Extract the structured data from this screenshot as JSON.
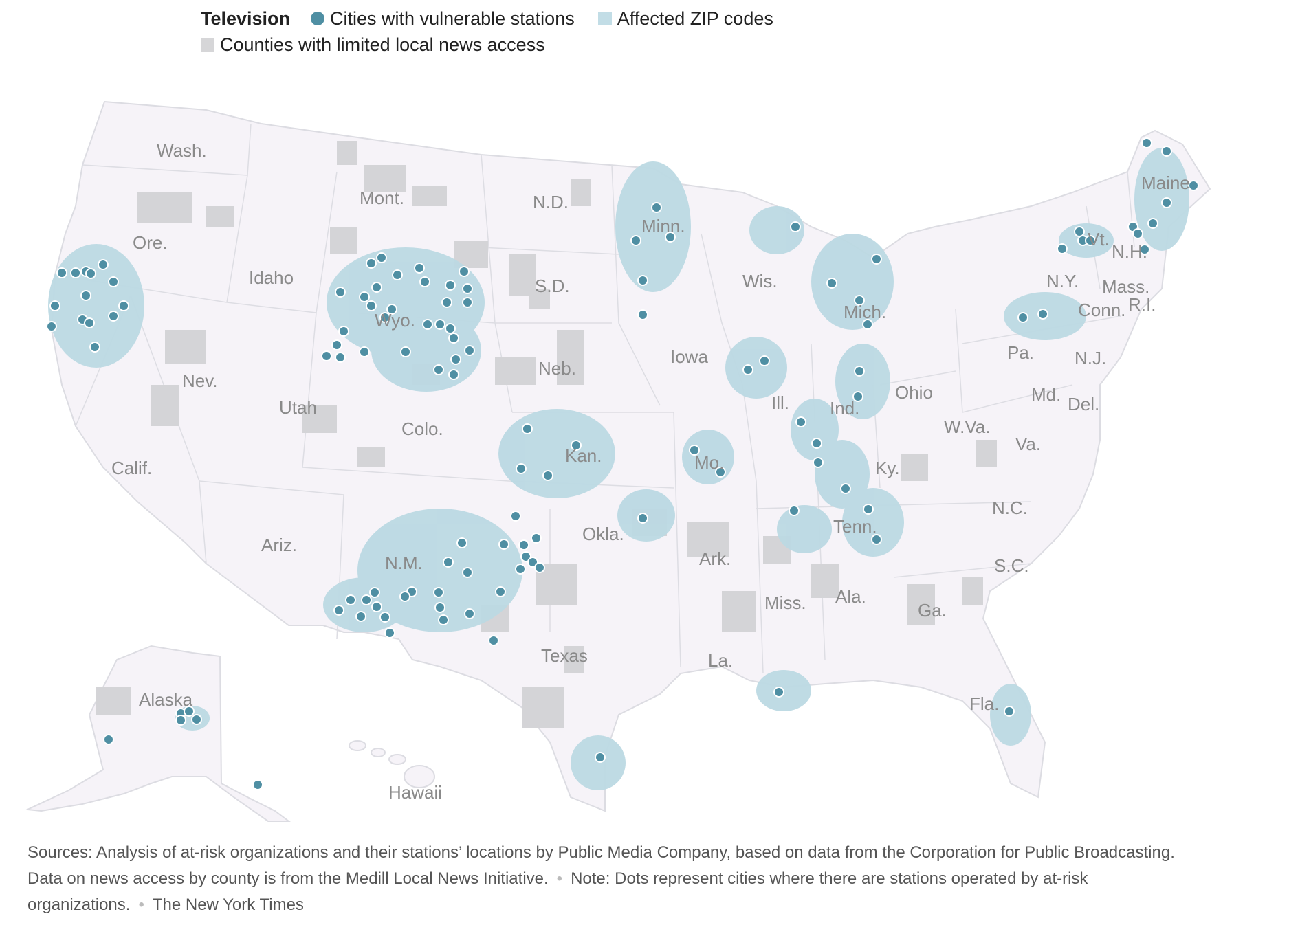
{
  "legend": {
    "title": "Television",
    "items": [
      {
        "label": "Cities with vulnerable stations",
        "swatch": "dot",
        "color": "#4f8fa3"
      },
      {
        "label": "Affected ZIP codes",
        "swatch": "box",
        "color": "#c2dde6"
      },
      {
        "label": "Counties with limited local news access",
        "swatch": "box",
        "color": "#d6d6d8"
      }
    ]
  },
  "colors": {
    "land": "#f6f3f8",
    "border": "#d9d9df",
    "affected": "#bcd9e3",
    "limited": "#d4d4d7",
    "dot": "#4f8fa3",
    "dot_stroke": "#ffffff"
  },
  "state_labels": [
    "Wash.",
    "Ore.",
    "Calif.",
    "Idaho",
    "Nev.",
    "Mont.",
    "Wyo.",
    "Utah",
    "Ariz.",
    "Colo.",
    "N.M.",
    "N.D.",
    "S.D.",
    "Neb.",
    "Kan.",
    "Okla.",
    "Texas",
    "Minn.",
    "Iowa",
    "Mo.",
    "Ark.",
    "La.",
    "Wis.",
    "Ill.",
    "Mich.",
    "Ind.",
    "Ohio",
    "Ky.",
    "Tenn.",
    "Miss.",
    "Ala.",
    "Ga.",
    "Fla.",
    "S.C.",
    "N.C.",
    "Va.",
    "W.Va.",
    "Pa.",
    "N.Y.",
    "Vt.",
    "N.H.",
    "Maine",
    "Mass.",
    "R.I.",
    "Conn.",
    "N.J.",
    "Del.",
    "Md.",
    "Alaska",
    "Hawaii"
  ],
  "footer": {
    "sources": "Sources: Analysis of at-risk organizations and their stations’ locations by Public Media Company, based on data from the Corporation for Public Broadcasting. Data on news access by county is from the Medill Local News Initiative.",
    "note": "Note: Dots represent cities where there are stations operated by at-risk organizations.",
    "credit": "The New York Times"
  }
}
